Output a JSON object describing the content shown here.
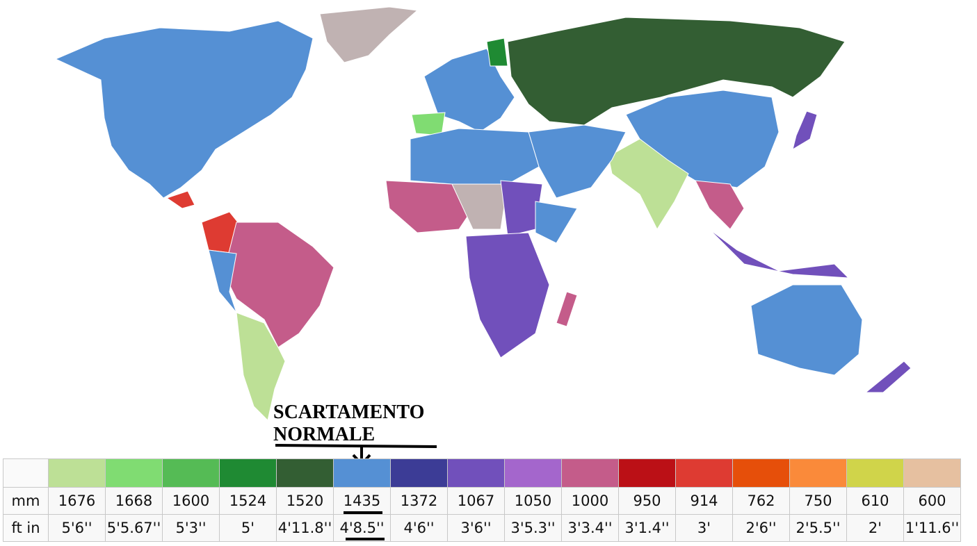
{
  "annotation": "SCARTAMENTO NORMALE",
  "legend": {
    "row_labels": [
      "mm",
      "ft in"
    ],
    "columns": [
      {
        "color": "#bde096",
        "mm": "1676",
        "ft_in": "5'6''"
      },
      {
        "color": "#80dc72",
        "mm": "1668",
        "ft_in": "5'5.67''"
      },
      {
        "color": "#55bb55",
        "mm": "1600",
        "ft_in": "5'3''"
      },
      {
        "color": "#1f8a33",
        "mm": "1524",
        "ft_in": "5'"
      },
      {
        "color": "#335e33",
        "mm": "1520",
        "ft_in": "4'11.8''"
      },
      {
        "color": "#5590d4",
        "mm": "1435",
        "ft_in": "4'8.5''"
      },
      {
        "color": "#3c3c96",
        "mm": "1372",
        "ft_in": "4'6''"
      },
      {
        "color": "#7150bb",
        "mm": "1067",
        "ft_in": "3'6''"
      },
      {
        "color": "#a466cc",
        "mm": "1050",
        "ft_in": "3'5.3''"
      },
      {
        "color": "#c45c8a",
        "mm": "1000",
        "ft_in": "3'3.4''"
      },
      {
        "color": "#bb1016",
        "mm": "950",
        "ft_in": "3'1.4''"
      },
      {
        "color": "#de3b32",
        "mm": "914",
        "ft_in": "3'"
      },
      {
        "color": "#e64f0a",
        "mm": "762",
        "ft_in": "2'6''"
      },
      {
        "color": "#fa8a3a",
        "mm": "750",
        "ft_in": "2'5.5''"
      },
      {
        "color": "#d0d44a",
        "mm": "610",
        "ft_in": "2'"
      },
      {
        "color": "#e6c0a0",
        "mm": "600",
        "ft_in": "1'11.6''"
      }
    ]
  }
}
